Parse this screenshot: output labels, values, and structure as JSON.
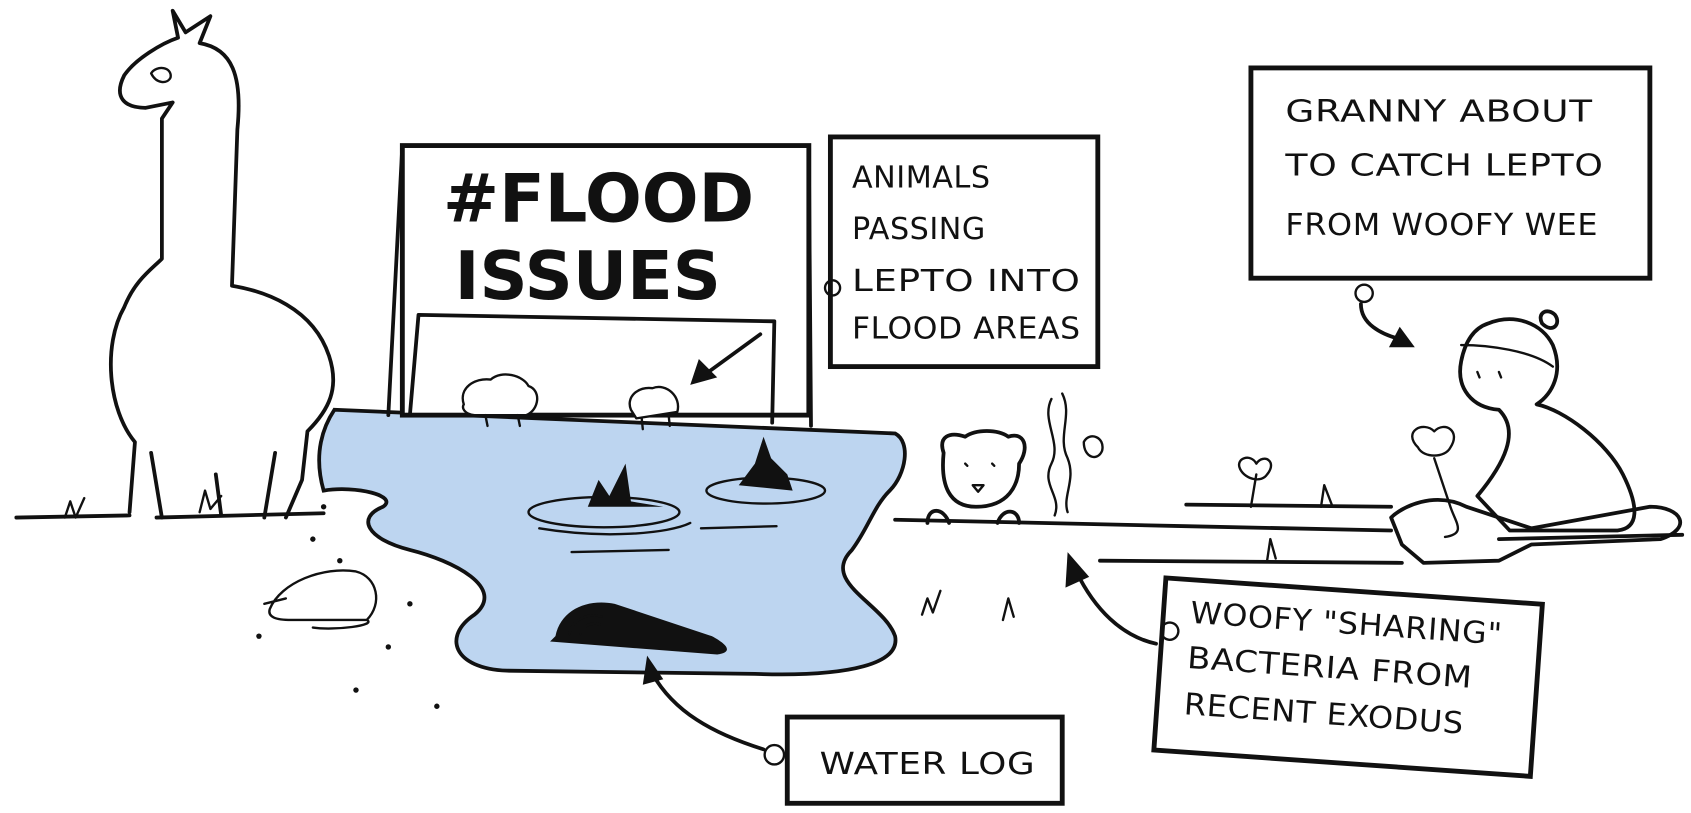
{
  "sign": {
    "lines": [
      "#FLOOD",
      "ISSUES"
    ]
  },
  "callouts": {
    "animals": {
      "lines": [
        "ANIMALS",
        "PASSING",
        "LEPTO INTO",
        "FLOOD AREAS"
      ]
    },
    "granny": {
      "lines": [
        "GRANNY ABOUT",
        "TO CATCH LEPTO",
        "FROM WOOFY WEE"
      ]
    },
    "woofy": {
      "lines": [
        "WOOFY \"SHARING\"",
        "BACTERIA FROM",
        "RECENT EXODUS"
      ]
    },
    "log": {
      "lines": [
        "WATER LOG"
      ]
    }
  }
}
